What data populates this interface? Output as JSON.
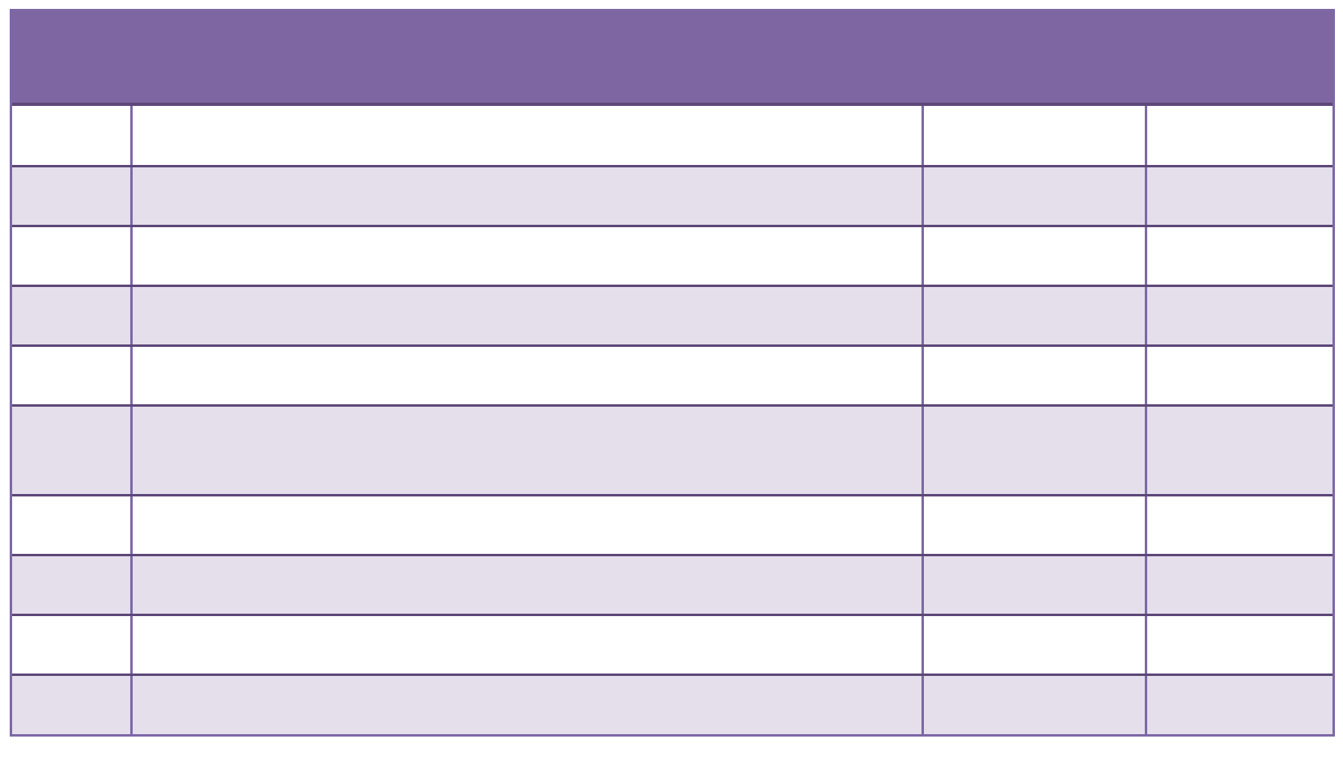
{
  "page": {
    "background": "#ffffff"
  },
  "table": {
    "header": {
      "label": ""
    },
    "column_count": 4,
    "rows": [
      [
        "",
        "",
        "",
        ""
      ],
      [
        "",
        "",
        "",
        ""
      ],
      [
        "",
        "",
        "",
        ""
      ],
      [
        "",
        "",
        "",
        ""
      ],
      [
        "",
        "",
        "",
        ""
      ],
      [
        "",
        "",
        "",
        ""
      ],
      [
        "",
        "",
        "",
        ""
      ],
      [
        "",
        "",
        "",
        ""
      ],
      [
        "",
        "",
        "",
        ""
      ],
      [
        "",
        "",
        "",
        ""
      ]
    ],
    "style": {
      "header_fill": "#7E66A2",
      "band_fill": "#E4DFEB",
      "row_line": "#5D4878",
      "column_line": "#7D68A6"
    }
  }
}
